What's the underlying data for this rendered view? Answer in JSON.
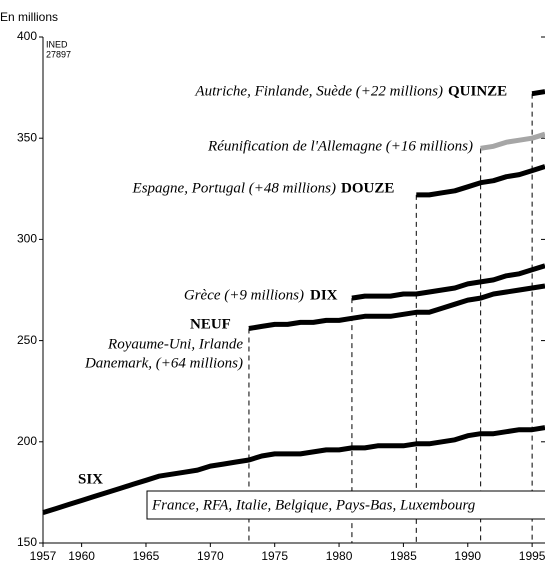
{
  "chart_data": {
    "type": "line",
    "y_label": "En millions",
    "source": [
      "INED",
      "27897"
    ],
    "x": [
      1957,
      1958,
      1959,
      1960,
      1961,
      1962,
      1963,
      1964,
      1965,
      1966,
      1967,
      1968,
      1969,
      1970,
      1971,
      1972,
      1973,
      1974,
      1975,
      1976,
      1977,
      1978,
      1979,
      1980,
      1981,
      1982,
      1983,
      1984,
      1985,
      1986,
      1987,
      1988,
      1989,
      1990,
      1991,
      1992,
      1993,
      1994,
      1995,
      1996
    ],
    "series": [
      {
        "name": "SIX",
        "color": "#000000",
        "values": [
          165,
          167,
          169,
          171,
          173,
          175,
          177,
          179,
          181,
          183,
          184,
          185,
          186,
          188,
          189,
          190,
          191,
          193,
          194,
          194,
          194,
          195,
          196,
          196,
          197,
          197,
          198,
          198,
          198,
          199,
          199,
          200,
          201,
          203,
          204,
          204,
          205,
          206,
          206,
          207
        ]
      },
      {
        "name": "NEUF",
        "color": "#000000",
        "values": [
          null,
          null,
          null,
          null,
          null,
          null,
          null,
          null,
          null,
          null,
          null,
          null,
          null,
          null,
          null,
          null,
          256,
          257,
          258,
          258,
          259,
          259,
          260,
          260,
          261,
          262,
          262,
          262,
          263,
          264,
          264,
          266,
          268,
          270,
          271,
          273,
          274,
          275,
          276,
          277
        ]
      },
      {
        "name": "DIX",
        "color": "#000000",
        "values": [
          null,
          null,
          null,
          null,
          null,
          null,
          null,
          null,
          null,
          null,
          null,
          null,
          null,
          null,
          null,
          null,
          null,
          null,
          null,
          null,
          null,
          null,
          null,
          null,
          271,
          272,
          272,
          272,
          273,
          273,
          274,
          275,
          276,
          278,
          279,
          280,
          282,
          283,
          285,
          287
        ]
      },
      {
        "name": "DOUZE",
        "color": "#000000",
        "values": [
          null,
          null,
          null,
          null,
          null,
          null,
          null,
          null,
          null,
          null,
          null,
          null,
          null,
          null,
          null,
          null,
          null,
          null,
          null,
          null,
          null,
          null,
          null,
          null,
          null,
          null,
          null,
          null,
          null,
          322,
          322,
          323,
          324,
          326,
          328,
          329,
          331,
          332,
          334,
          336
        ]
      },
      {
        "color": "#a6a6a6",
        "values": [
          null,
          null,
          null,
          null,
          null,
          null,
          null,
          null,
          null,
          null,
          null,
          null,
          null,
          null,
          null,
          null,
          null,
          null,
          null,
          null,
          null,
          null,
          null,
          null,
          null,
          null,
          null,
          null,
          null,
          null,
          null,
          null,
          null,
          null,
          345,
          346,
          348,
          349,
          350,
          352
        ]
      },
      {
        "name": "QUINZE",
        "color": "#000000",
        "values": [
          null,
          null,
          null,
          null,
          null,
          null,
          null,
          null,
          null,
          null,
          null,
          null,
          null,
          null,
          null,
          null,
          null,
          null,
          null,
          null,
          null,
          null,
          null,
          null,
          null,
          null,
          null,
          null,
          null,
          null,
          null,
          null,
          null,
          null,
          null,
          null,
          null,
          null,
          372,
          373
        ]
      }
    ],
    "annotations": [
      "France, RFA, Italie, Belgique, Pays-Bas, Luxembourg",
      "Royaume-Uni, Irlande",
      "Danemark, (+64 millions)",
      "Grèce (+9 millions)",
      "Espagne, Portugal (+48 millions)",
      "Réunification de l'Allemagne (+16 millions)",
      "Autriche, Finlande, Suède (+22 millions)"
    ],
    "xlim": [
      1957,
      1996
    ],
    "xticks": [
      1957,
      1960,
      1965,
      1970,
      1975,
      1980,
      1985,
      1990,
      1995
    ],
    "ylim": [
      150,
      400
    ],
    "yticks": [
      150,
      200,
      250,
      300,
      350,
      400
    ]
  }
}
